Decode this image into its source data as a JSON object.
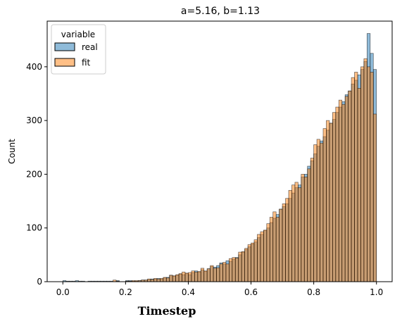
{
  "chart_data": {
    "type": "bar",
    "title": "a=5.16, b=1.13",
    "xlabel": "Timestep",
    "ylabel": "Count",
    "xlim": [
      -0.05,
      1.05
    ],
    "ylim": [
      0,
      485
    ],
    "x_ticks": [
      0.0,
      0.2,
      0.4,
      0.6,
      0.8,
      1.0
    ],
    "x_tick_labels": [
      "0.0",
      "0.2",
      "0.4",
      "0.6",
      "0.8",
      "1.0"
    ],
    "y_ticks": [
      0,
      100,
      200,
      300,
      400
    ],
    "y_tick_labels": [
      "0",
      "100",
      "200",
      "300",
      "400"
    ],
    "grid": false,
    "legend": {
      "title": "variable",
      "placement": "top-left"
    },
    "bin_width": 0.01,
    "bin_start": 0.0,
    "series": [
      {
        "name": "real",
        "color": "#1f77b4",
        "values": [
          2,
          1,
          1,
          1,
          2,
          1,
          1,
          0,
          1,
          1,
          1,
          1,
          1,
          1,
          1,
          1,
          0,
          2,
          0,
          0,
          2,
          2,
          1,
          1,
          2,
          3,
          3,
          4,
          5,
          5,
          6,
          5,
          7,
          8,
          12,
          10,
          12,
          14,
          13,
          15,
          13,
          17,
          20,
          18,
          22,
          19,
          24,
          28,
          27,
          30,
          35,
          33,
          39,
          38,
          42,
          45,
          50,
          55,
          60,
          65,
          70,
          74,
          82,
          88,
          95,
          100,
          110,
          118,
          125,
          135,
          140,
          145,
          155,
          165,
          175,
          180,
          195,
          200,
          215,
          225,
          238,
          252,
          262,
          270,
          282,
          295,
          302,
          315,
          325,
          335,
          348,
          355,
          368,
          375,
          385,
          395,
          410,
          462,
          425,
          395
        ]
      },
      {
        "name": "fit",
        "color": "#ff7f0e",
        "values": [
          0,
          0,
          0,
          0,
          0,
          0,
          0,
          0,
          0,
          0,
          0,
          0,
          0,
          0,
          0,
          0,
          3,
          1,
          0,
          0,
          1,
          1,
          2,
          2,
          2,
          3,
          3,
          5,
          4,
          6,
          5,
          6,
          8,
          7,
          12,
          11,
          13,
          15,
          18,
          16,
          17,
          20,
          18,
          19,
          25,
          20,
          24,
          30,
          25,
          26,
          33,
          36,
          33,
          43,
          45,
          44,
          55,
          56,
          62,
          69,
          72,
          78,
          88,
          93,
          96,
          108,
          120,
          130,
          120,
          135,
          145,
          155,
          170,
          180,
          185,
          175,
          200,
          195,
          210,
          230,
          255,
          265,
          258,
          285,
          300,
          295,
          315,
          325,
          338,
          330,
          345,
          355,
          380,
          390,
          360,
          400,
          415,
          400,
          390,
          312
        ]
      }
    ]
  }
}
